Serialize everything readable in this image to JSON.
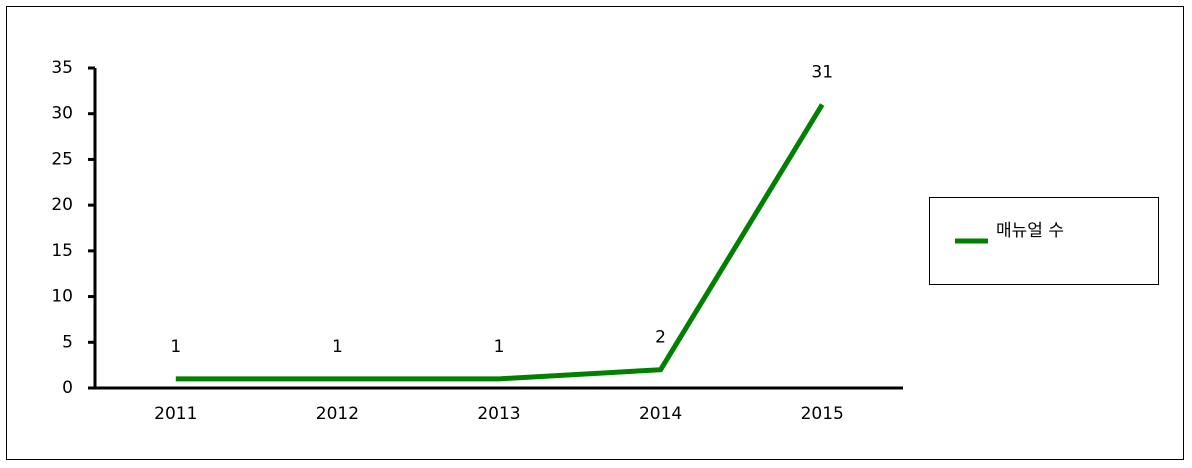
{
  "chart_data": {
    "type": "line",
    "categories": [
      "2011",
      "2012",
      "2013",
      "2014",
      "2015"
    ],
    "series": [
      {
        "name": "매뉴얼 수",
        "color": "#008000",
        "values": [
          1,
          1,
          1,
          2,
          31
        ]
      }
    ],
    "ylim": [
      0,
      35
    ],
    "yticks": [
      0,
      5,
      10,
      15,
      20,
      25,
      30,
      35
    ],
    "grid": false,
    "legend": "right"
  }
}
